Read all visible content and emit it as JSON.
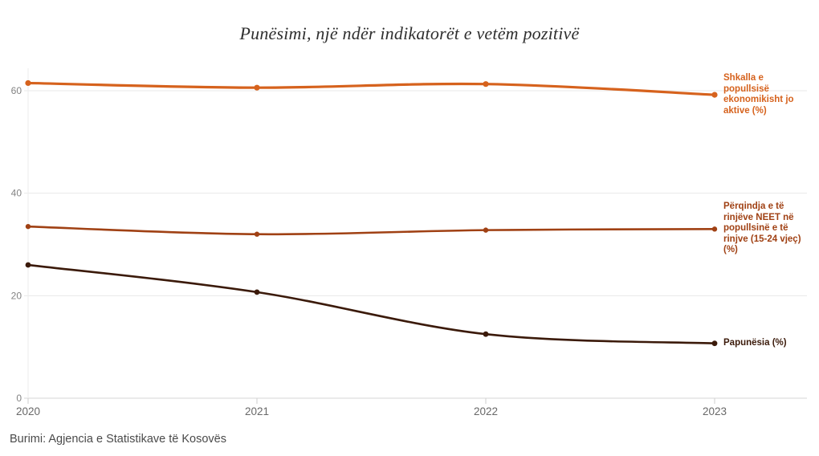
{
  "title": "Punësimi, një ndër indikatorët e vetëm pozitivë",
  "source": "Burimi: Agjencia e Statistikave të Kosovës",
  "colors": {
    "inactive_series": "#d6621d",
    "neet_series": "#a04114",
    "unemployment_series": "#3b1a0a",
    "gridline": "#e8e8e8",
    "baseline": "#d6d6d6",
    "tick": "#cfcfcf",
    "y_axis_text": "#838383",
    "x_axis_text": "#686868",
    "title_text": "#2f2f2f",
    "source_text": "#4a4a4a"
  },
  "chart_data": {
    "type": "line",
    "title": "Punësimi, një ndër indikatorët e vetëm pozitivë",
    "x": [
      "2020",
      "2021",
      "2022",
      "2023"
    ],
    "xlabel": "",
    "ylabel": "",
    "yticks": [
      0,
      20,
      40,
      60
    ],
    "ylim": [
      0,
      64
    ],
    "grid": "horizontal",
    "legend_position": "right-direct-labels",
    "series": [
      {
        "name": "Shkalla e popullsisë ekonomikisht jo aktive (%)",
        "label_lines": [
          "Shkalla e",
          "popullsisë",
          "ekonomikisht jo",
          "aktive (%)"
        ],
        "color": "#d6621d",
        "values": [
          61.5,
          60.6,
          61.3,
          59.2
        ]
      },
      {
        "name": "Përqindja e të rinjëve NEET në popullsinë e të rinjve (15-24 vjeç) (%)",
        "label_lines": [
          "Përqindja e të",
          "rinjëve NEET në",
          "popullsinë e të",
          "rinjve (15-24 vjeç)",
          "(%)"
        ],
        "color": "#a04114",
        "values": [
          33.5,
          32,
          32.8,
          33
        ]
      },
      {
        "name": "Papunësia (%)",
        "label_lines": [
          "Papunësia (%)"
        ],
        "color": "#3b1a0a",
        "values": [
          26,
          20.7,
          12.5,
          10.7
        ]
      }
    ],
    "source": "Burimi: Agjencia e Statistikave të Kosovës"
  }
}
